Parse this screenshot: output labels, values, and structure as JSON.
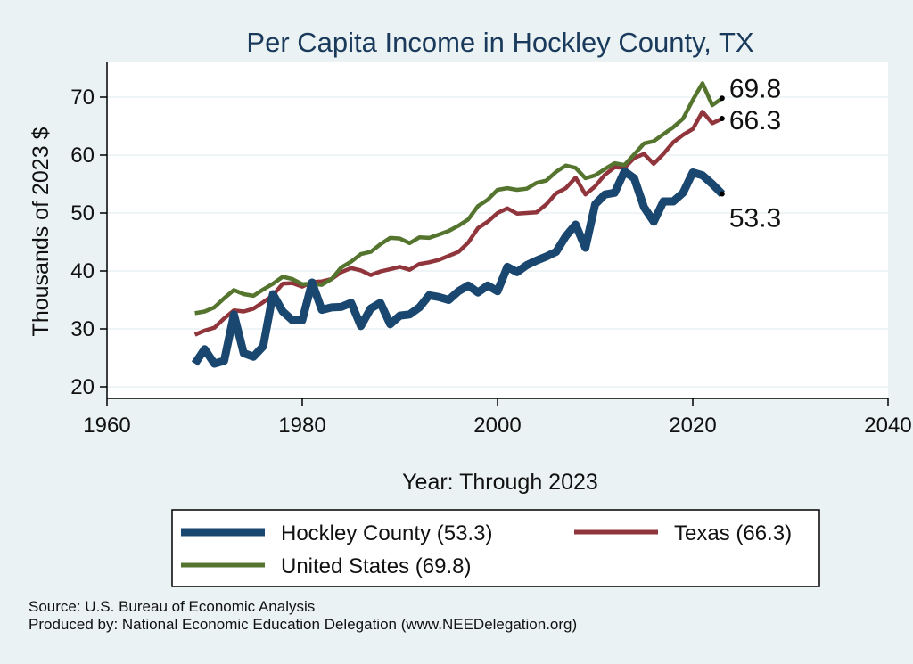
{
  "chart_data": {
    "type": "line",
    "title": "Per Capita Income in Hockley County, TX",
    "xlabel": "Year: Through 2023",
    "ylabel": "Thousands of 2023 $",
    "xlim": [
      1960,
      2040
    ],
    "ylim": [
      18,
      76
    ],
    "xticks": [
      1960,
      1980,
      2000,
      2020,
      2040
    ],
    "yticks": [
      20,
      30,
      40,
      50,
      60,
      70
    ],
    "grid": true,
    "x": [
      1969,
      1970,
      1971,
      1972,
      1973,
      1974,
      1975,
      1976,
      1977,
      1978,
      1979,
      1980,
      1981,
      1982,
      1983,
      1984,
      1985,
      1986,
      1987,
      1988,
      1989,
      1990,
      1991,
      1992,
      1993,
      1994,
      1995,
      1996,
      1997,
      1998,
      1999,
      2000,
      2001,
      2002,
      2003,
      2004,
      2005,
      2006,
      2007,
      2008,
      2009,
      2010,
      2011,
      2012,
      2013,
      2014,
      2015,
      2016,
      2017,
      2018,
      2019,
      2020,
      2021,
      2022,
      2023
    ],
    "series": [
      {
        "name": "Hockley County",
        "legend_label": "Hockley County (53.3)",
        "end_label": "53.3",
        "color": "#1a476f",
        "values": [
          24.0,
          26.5,
          24.0,
          24.5,
          32.5,
          25.8,
          25.2,
          27.0,
          36.0,
          33.0,
          31.5,
          31.5,
          38.0,
          33.3,
          33.7,
          33.8,
          34.5,
          30.5,
          33.5,
          34.5,
          30.8,
          32.3,
          32.5,
          33.7,
          35.8,
          35.5,
          35.0,
          36.5,
          37.5,
          36.3,
          37.5,
          36.5,
          40.7,
          39.8,
          41.0,
          41.8,
          42.5,
          43.3,
          46.0,
          48.0,
          44.0,
          51.5,
          53.2,
          53.5,
          57.2,
          56.0,
          51.0,
          48.5,
          52.0,
          52.0,
          53.5,
          57.0,
          56.5,
          55.0,
          53.3
        ]
      },
      {
        "name": "Texas",
        "legend_label": "Texas (66.3)",
        "end_label": "66.3",
        "color": "#90353b",
        "values": [
          29.0,
          29.7,
          30.2,
          31.8,
          33.2,
          33.0,
          33.5,
          34.6,
          35.8,
          37.8,
          37.9,
          37.3,
          38.1,
          38.2,
          38.6,
          39.8,
          40.5,
          40.1,
          39.3,
          39.9,
          40.3,
          40.7,
          40.2,
          41.2,
          41.5,
          41.9,
          42.6,
          43.3,
          44.9,
          47.4,
          48.5,
          50.0,
          50.8,
          49.9,
          50.0,
          50.1,
          51.5,
          53.4,
          54.3,
          56.1,
          53.2,
          54.6,
          56.6,
          57.9,
          57.8,
          59.5,
          60.2,
          58.5,
          60.2,
          62.2,
          63.5,
          64.5,
          67.5,
          65.5,
          66.3
        ]
      },
      {
        "name": "United States",
        "legend_label": "United States (69.8)",
        "end_label": "69.8",
        "color": "#55752f",
        "values": [
          32.7,
          33.0,
          33.7,
          35.3,
          36.7,
          36.0,
          35.7,
          36.8,
          37.8,
          39.0,
          38.6,
          37.7,
          37.8,
          37.6,
          38.6,
          40.6,
          41.6,
          42.9,
          43.3,
          44.6,
          45.7,
          45.6,
          44.8,
          45.8,
          45.7,
          46.3,
          46.9,
          47.8,
          48.9,
          51.2,
          52.3,
          54.0,
          54.3,
          54.0,
          54.2,
          55.2,
          55.6,
          57.1,
          58.2,
          57.8,
          56.0,
          56.5,
          57.6,
          58.6,
          58.3,
          60.1,
          62.0,
          62.4,
          63.6,
          64.8,
          66.3,
          69.5,
          72.4,
          68.6,
          69.8
        ]
      }
    ]
  },
  "source": {
    "line1": "Source: U.S. Bureau of Economic Analysis",
    "line2": "Produced by: National Economic Education Delegation (www.NEEDelegation.org)"
  }
}
